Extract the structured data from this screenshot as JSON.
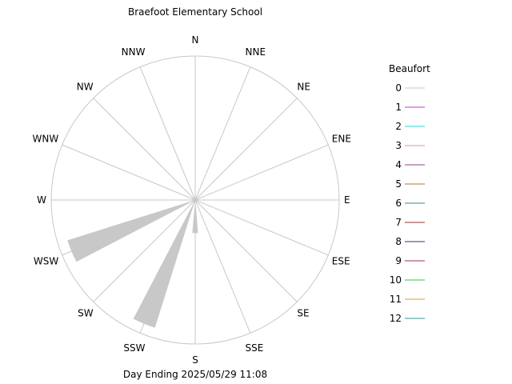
{
  "chart_data": {
    "type": "wind-rose",
    "title": "Braefoot Elementary School",
    "subtitle": "Day Ending 2025/05/29 11:08",
    "directions": [
      "N",
      "NNE",
      "NE",
      "ENE",
      "E",
      "ESE",
      "SE",
      "SSE",
      "S",
      "SSW",
      "SW",
      "WSW",
      "W",
      "WNW",
      "NW",
      "NNW"
    ],
    "legend": {
      "title": "Beaufort",
      "placement": "right",
      "entries": [
        {
          "label": "0",
          "color": "#c8c8c8"
        },
        {
          "label": "1",
          "color": "#cc33cc"
        },
        {
          "label": "2",
          "color": "#33cccc"
        },
        {
          "label": "3",
          "color": "#e088cc"
        },
        {
          "label": "4",
          "color": "#884488"
        },
        {
          "label": "5",
          "color": "#aa7733"
        },
        {
          "label": "6",
          "color": "#338888"
        },
        {
          "label": "7",
          "color": "#993333"
        },
        {
          "label": "8",
          "color": "#333377"
        },
        {
          "label": "9",
          "color": "#993344"
        },
        {
          "label": "10",
          "color": "#33cc33"
        },
        {
          "label": "11",
          "color": "#dd9933"
        },
        {
          "label": "12",
          "color": "#339999"
        }
      ]
    },
    "petals": [
      {
        "direction": "S",
        "bin": "0",
        "start": 0.01,
        "end": 0.23,
        "width_deg": 10
      },
      {
        "direction": "SSW",
        "bin": "0",
        "start": 0.01,
        "end": 0.93,
        "width_deg": 10
      },
      {
        "direction": "WSW",
        "bin": "0",
        "start": 0.01,
        "end": 0.93,
        "width_deg": 10
      }
    ],
    "grid": true
  }
}
